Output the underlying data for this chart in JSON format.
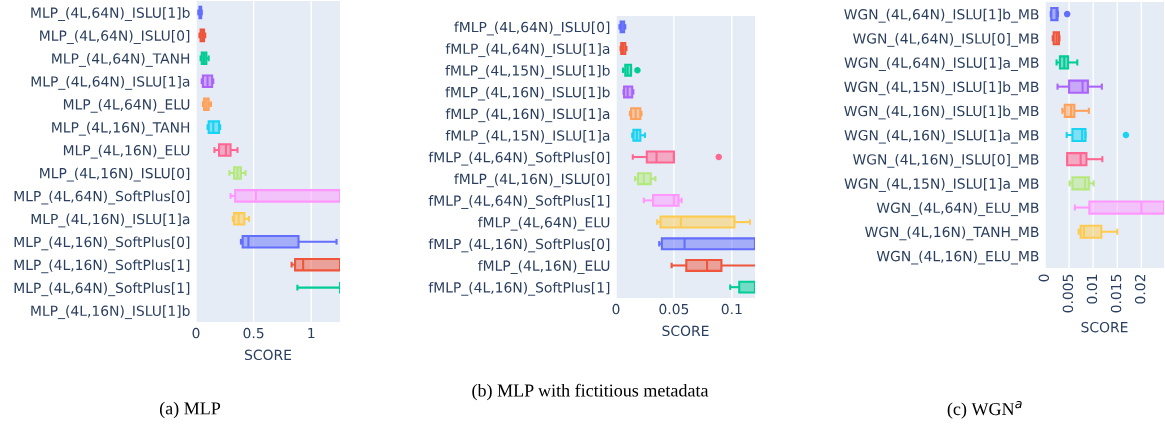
{
  "chart_data": [
    {
      "type": "box",
      "orientation": "horizontal",
      "xlabel": "SCORE",
      "grid": "x",
      "xlim": [
        0,
        1.25
      ],
      "xticks": [
        0,
        {
          "value": 0.5,
          "label": "0.5"
        },
        1
      ],
      "annotations": [
        "(a) MLP"
      ],
      "categories": [
        "MLP_(4L,64N)_ISLU[1]b",
        "MLP_(4L,64N)_ISLU[0]",
        "MLP_(4L,64N)_TANH",
        "MLP_(4L,64N)_ISLU[1]a",
        "MLP_(4L,64N)_ELU",
        "MLP_(4L,16N)_TANH",
        "MLP_(4L,16N)_ELU",
        "MLP_(4L,16N)_ISLU[0]",
        "MLP_(4L,64N)_SoftPlus[0]",
        "MLP_(4L,16N)_ISLU[1]a",
        "MLP_(4L,16N)_SoftPlus[0]",
        "MLP_(4L,16N)_SoftPlus[1]",
        "MLP_(4L,64N)_SoftPlus[1]",
        "MLP_(4L,16N)_ISLU[1]b"
      ],
      "colors": [
        "#636efa",
        "#ef553b",
        "#00cc96",
        "#ab63fa",
        "#ffa15a",
        "#19d3f3",
        "#ff6692",
        "#b6e880",
        "#ff97ff",
        "#fecb52",
        "#636efa",
        "#ef553b",
        "#00cc96",
        "#ab63fa"
      ],
      "boxes": [
        {
          "low": 0.02,
          "q1": 0.03,
          "median": 0.035,
          "q3": 0.045,
          "high": 0.05
        },
        {
          "low": 0.03,
          "q1": 0.04,
          "median": 0.055,
          "q3": 0.07,
          "high": 0.08
        },
        {
          "low": 0.04,
          "q1": 0.05,
          "median": 0.07,
          "q3": 0.09,
          "high": 0.11
        },
        {
          "low": 0.05,
          "q1": 0.06,
          "median": 0.1,
          "q3": 0.14,
          "high": 0.15
        },
        {
          "low": 0.06,
          "q1": 0.07,
          "median": 0.09,
          "q3": 0.11,
          "high": 0.13
        },
        {
          "low": 0.1,
          "q1": 0.11,
          "median": 0.15,
          "q3": 0.2,
          "high": 0.21
        },
        {
          "low": 0.16,
          "q1": 0.2,
          "median": 0.26,
          "q3": 0.3,
          "high": 0.36
        },
        {
          "low": 0.29,
          "q1": 0.33,
          "median": 0.36,
          "q3": 0.39,
          "high": 0.43
        },
        {
          "low": 0.3,
          "q1": 0.34,
          "median": 0.52,
          "q3": 1.25,
          "high": 1.25
        },
        {
          "low": 0.32,
          "q1": 0.33,
          "median": 0.37,
          "q3": 0.42,
          "high": 0.46
        },
        {
          "low": 0.39,
          "q1": 0.405,
          "median": 0.455,
          "q3": 0.89,
          "high": 1.22
        },
        {
          "low": 0.83,
          "q1": 0.86,
          "median": 0.93,
          "q3": 1.25,
          "high": 1.25
        },
        {
          "low": 0.88,
          "q1": 1.25,
          "median": 1.25,
          "q3": 1.25,
          "high": 1.25
        },
        {
          "low": null,
          "q1": null,
          "median": null,
          "q3": null,
          "high": null
        }
      ]
    },
    {
      "type": "box",
      "orientation": "horizontal",
      "xlabel": "SCORE",
      "grid": "x",
      "xlim": [
        0,
        0.12
      ],
      "xticks": [
        0,
        {
          "value": 0.05,
          "label": "0.05"
        },
        {
          "value": 0.1,
          "label": "0.1"
        }
      ],
      "annotations": [
        "(b) MLP with fictitious metadata"
      ],
      "categories": [
        "fMLP_(4L,64N)_ISLU[0]",
        "fMLP_(4L,64N)_ISLU[1]a",
        "fMLP_(4L,15N)_ISLU[1]b",
        "fMLP_(4L,16N)_ISLU[1]b",
        "fMLP_(4L,16N)_ISLU[1]a",
        "fMLP_(4L,15N)_ISLU[1]a",
        "fMLP_(4L,64N)_SoftPlus[0]",
        "fMLP_(4L,16N)_ISLU[0]",
        "fMLP_(4L,64N)_SoftPlus[1]",
        "fMLP_(4L,64N)_ELU",
        "fMLP_(4L,16N)_SoftPlus[0]",
        "fMLP_(4L,16N)_ELU",
        "fMLP_(4L,16N)_SoftPlus[1]"
      ],
      "colors": [
        "#636efa",
        "#ef553b",
        "#00cc96",
        "#ab63fa",
        "#ffa15a",
        "#19d3f3",
        "#ff6692",
        "#b6e880",
        "#ff97ff",
        "#fecb52",
        "#636efa",
        "#ef553b",
        "#00cc96"
      ],
      "boxes": [
        {
          "low": 0.003,
          "q1": 0.004,
          "median": 0.005,
          "q3": 0.007,
          "high": 0.008
        },
        {
          "low": 0.004,
          "q1": 0.0045,
          "median": 0.006,
          "q3": 0.008,
          "high": 0.009
        },
        {
          "low": 0.006,
          "q1": 0.008,
          "median": 0.01,
          "q3": 0.013,
          "high": 0.013,
          "outliers": [
            0.0185
          ]
        },
        {
          "low": 0.0065,
          "q1": 0.007,
          "median": 0.01,
          "q3": 0.014,
          "high": 0.015
        },
        {
          "low": 0.012,
          "q1": 0.013,
          "median": 0.017,
          "q3": 0.021,
          "high": 0.022
        },
        {
          "low": 0.014,
          "q1": 0.015,
          "median": 0.018,
          "q3": 0.021,
          "high": 0.025
        },
        {
          "low": 0.0145,
          "q1": 0.0266,
          "median": 0.035,
          "q3": 0.05,
          "high": 0.05,
          "outliers": [
            0.0887
          ]
        },
        {
          "low": 0.0165,
          "q1": 0.019,
          "median": 0.024,
          "q3": 0.03,
          "high": 0.034
        },
        {
          "low": 0.024,
          "q1": 0.032,
          "median": 0.05,
          "q3": 0.054,
          "high": 0.0566
        },
        {
          "low": 0.0355,
          "q1": 0.0384,
          "median": 0.056,
          "q3": 0.1023,
          "high": 0.1156
        },
        {
          "low": 0.0373,
          "q1": 0.0396,
          "median": 0.0592,
          "q3": 0.12,
          "high": 0.12
        },
        {
          "low": 0.048,
          "q1": 0.0607,
          "median": 0.0786,
          "q3": 0.091,
          "high": 0.12
        },
        {
          "low": 0.0986,
          "q1": 0.1064,
          "median": 0.12,
          "q3": 0.12,
          "high": 0.12
        }
      ]
    },
    {
      "type": "box",
      "orientation": "horizontal",
      "xlabel": "SCORE",
      "grid": "x",
      "xlim": [
        0,
        0.0247
      ],
      "xticks": [
        0,
        {
          "value": 0.005,
          "label": "0.005"
        },
        {
          "value": 0.01,
          "label": "0.01"
        },
        {
          "value": 0.015,
          "label": "0.015"
        },
        {
          "value": 0.02,
          "label": "0.02"
        }
      ],
      "annotations": [
        "(c) WGN$^{a}$"
      ],
      "categories": [
        "WGN_(4L,64N)_ISLU[1]b_MB",
        "WGN_(4L,64N)_ISLU[0]_MB",
        "WGN_(4L,64N)_ISLU[1]a_MB",
        "WGN_(4L,15N)_ISLU[1]b_MB",
        "WGN_(4L,16N)_ISLU[1]b_MB",
        "WGN_(4L,16N)_ISLU[1]a_MB",
        "WGN_(4L,16N)_ISLU[0]_MB",
        "WGN_(4L,15N)_ISLU[1]a_MB",
        "WGN_(4L,64N)_ELU_MB",
        "WGN_(4L,16N)_TANH_MB",
        "WGN_(4L,16N)_ELU_MB"
      ],
      "colors": [
        "#636efa",
        "#ef553b",
        "#00cc96",
        "#ab63fa",
        "#ffa15a",
        "#19d3f3",
        "#ff6692",
        "#b6e880",
        "#ff97ff",
        "#fecb52",
        "#636efa"
      ],
      "boxes": [
        {
          "low": 0.0012,
          "q1": 0.0013,
          "median": 0.0024,
          "q3": 0.0026,
          "high": 0.0027,
          "outliers": [
            0.0046
          ]
        },
        {
          "low": 0.0016,
          "q1": 0.0018,
          "median": 0.0024,
          "q3": 0.0029,
          "high": 0.003
        },
        {
          "low": 0.0024,
          "q1": 0.0031,
          "median": 0.004,
          "q3": 0.0048,
          "high": 0.0067
        },
        {
          "low": 0.0026,
          "q1": 0.005,
          "median": 0.0078,
          "q3": 0.0089,
          "high": 0.0118
        },
        {
          "low": 0.0036,
          "q1": 0.0041,
          "median": 0.0054,
          "q3": 0.0061,
          "high": 0.0091
        },
        {
          "low": 0.0045,
          "q1": 0.0057,
          "median": 0.0077,
          "q3": 0.0084,
          "high": 0.0084,
          "outliers": [
            0.0168
          ]
        },
        {
          "low": 0.0046,
          "q1": 0.0046,
          "median": 0.0074,
          "q3": 0.0086,
          "high": 0.0119
        },
        {
          "low": 0.0051,
          "q1": 0.0057,
          "median": 0.0083,
          "q3": 0.0091,
          "high": 0.0101
        },
        {
          "low": 0.0062,
          "q1": 0.0092,
          "median": 0.02,
          "q3": 0.0247,
          "high": 0.0247
        },
        {
          "low": 0.007,
          "q1": 0.0074,
          "median": 0.0081,
          "q3": 0.0117,
          "high": 0.015
        },
        {
          "low": null,
          "q1": null,
          "median": null,
          "q3": null,
          "high": null
        }
      ]
    }
  ]
}
